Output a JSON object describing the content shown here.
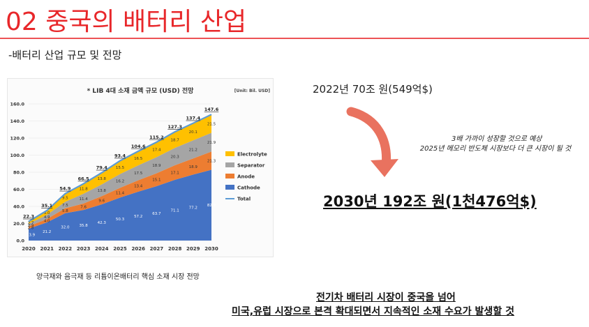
{
  "slide": {
    "title": "02 중국의 배터리 산업",
    "subtitle": "-배터리 산업 규모 및 전망",
    "chart_caption": "양극재와 음극재 등 리튬이온배터리 핵심 소재 시장 전망",
    "fact_top": "2022년 70조 원(549억$)",
    "note1": "3배 가까이 성장할 것으로 예상",
    "note2": "2025년 메모리 반도체 시장보다 더 큰 시장이 될 것",
    "fact_big": "2030년 192조 원(1천476억$)",
    "conclusion_line1": "전기차 배터리 시장이 중국을 넘어",
    "conclusion_line2": "미국,유럽 시장으로 본격 확대되면서 지속적인 소재 수요가 발생할 것",
    "colors": {
      "accent": "#e8272a",
      "arrow": "#e9725f"
    }
  },
  "chart_data": {
    "type": "area",
    "title": "* LIB 4대 소재 금액 규모 (USD) 전망",
    "unit": "[Unit: Bil. USD]",
    "x": [
      "2020",
      "2021",
      "2022",
      "2023",
      "2024",
      "2025",
      "2026",
      "2027",
      "2028",
      "2029",
      "2030"
    ],
    "ylim": [
      0,
      160
    ],
    "yticks": [
      "0.0",
      "20.0",
      "40.0",
      "60.0",
      "80.0",
      "100.0",
      "120.0",
      "140.0",
      "160.0"
    ],
    "series": [
      {
        "name": "Cathode",
        "color": "#4472c4",
        "values": [
          13.9,
          21.2,
          32.0,
          35.8,
          42.3,
          50.3,
          57.2,
          63.7,
          71.1,
          77.2,
          82.9
        ]
      },
      {
        "name": "Anode",
        "color": "#ed7d31",
        "values": [
          2.8,
          4.0,
          5.8,
          7.6,
          9.6,
          11.4,
          13.4,
          15.1,
          17.1,
          18.9,
          21.3
        ]
      },
      {
        "name": "Separator",
        "color": "#a5a5a5",
        "values": [
          2.9,
          4.9,
          7.5,
          11.4,
          13.8,
          16.2,
          17.5,
          18.9,
          20.3,
          21.2,
          21.9
        ]
      },
      {
        "name": "Electrolyte",
        "color": "#ffc000",
        "values": [
          2.7,
          5.0,
          9.5,
          11.8,
          13.8,
          15.5,
          16.5,
          17.4,
          18.7,
          20.1,
          21.5
        ]
      },
      {
        "name": "Total",
        "color": "#5b9bd5",
        "values": [
          22.3,
          35.1,
          54.9,
          66.5,
          79.4,
          93.4,
          104.6,
          115.2,
          127.3,
          137.4,
          147.6
        ]
      }
    ],
    "legend": "right"
  }
}
